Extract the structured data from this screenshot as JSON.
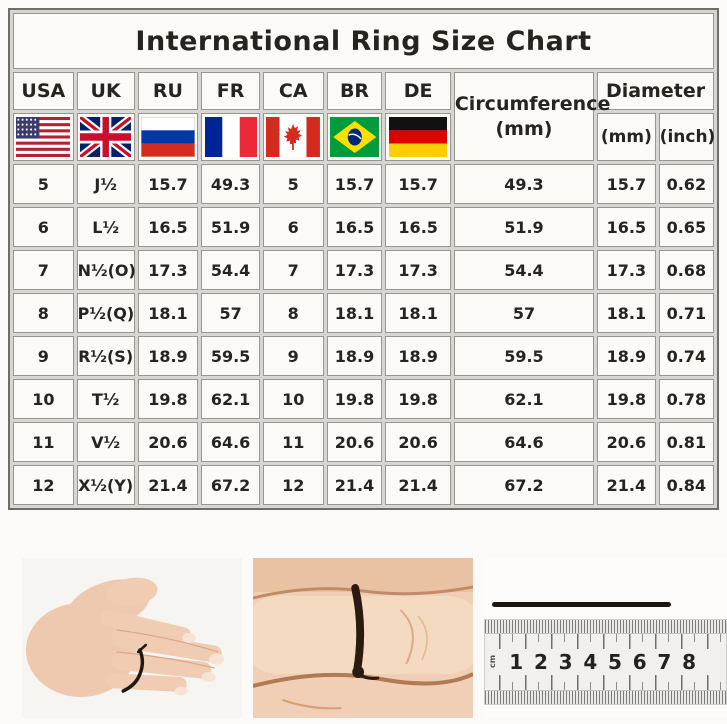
{
  "title": "International Ring Size Chart",
  "table": {
    "columns": [
      {
        "label": "USA",
        "flag": "usa-flag-icon"
      },
      {
        "label": "UK",
        "flag": "uk-flag-icon"
      },
      {
        "label": "RU",
        "flag": "russia-flag-icon"
      },
      {
        "label": "FR",
        "flag": "france-flag-icon"
      },
      {
        "label": "CA",
        "flag": "canada-flag-icon"
      },
      {
        "label": "BR",
        "flag": "brazil-flag-icon"
      },
      {
        "label": "DE",
        "flag": "germany-flag-icon"
      }
    ],
    "circumference_header": "Circumference",
    "circumference_unit": "(mm)",
    "diameter_header": "Diameter",
    "diameter_mm_header": "(mm)",
    "diameter_inch_header": "(inch)",
    "rows": [
      [
        "5",
        "J½",
        "15.7",
        "49.3",
        "5",
        "15.7",
        "15.7",
        "49.3",
        "15.7",
        "0.62"
      ],
      [
        "6",
        "L½",
        "16.5",
        "51.9",
        "6",
        "16.5",
        "16.5",
        "51.9",
        "16.5",
        "0.65"
      ],
      [
        "7",
        "N½(O)",
        "17.3",
        "54.4",
        "7",
        "17.3",
        "17.3",
        "54.4",
        "17.3",
        "0.68"
      ],
      [
        "8",
        "P½(Q)",
        "18.1",
        "57",
        "8",
        "18.1",
        "18.1",
        "57",
        "18.1",
        "0.71"
      ],
      [
        "9",
        "R½(S)",
        "18.9",
        "59.5",
        "9",
        "18.9",
        "18.9",
        "59.5",
        "18.9",
        "0.74"
      ],
      [
        "10",
        "T½",
        "19.8",
        "62.1",
        "10",
        "19.8",
        "19.8",
        "62.1",
        "19.8",
        "0.78"
      ],
      [
        "11",
        "V½",
        "20.6",
        "64.6",
        "11",
        "20.6",
        "20.6",
        "64.6",
        "20.6",
        "0.81"
      ],
      [
        "12",
        "X½(Y)",
        "21.4",
        "67.2",
        "12",
        "21.4",
        "21.4",
        "67.2",
        "21.4",
        "0.84"
      ]
    ]
  },
  "chart_data": {
    "type": "table",
    "title": "International Ring Size Chart",
    "columns": [
      "USA",
      "UK",
      "RU",
      "FR",
      "CA",
      "BR",
      "DE",
      "Circumference (mm)",
      "Diameter (mm)",
      "Diameter (inch)"
    ],
    "rows": [
      [
        "5",
        "J½",
        "15.7",
        "49.3",
        "5",
        "15.7",
        "15.7",
        "49.3",
        "15.7",
        "0.62"
      ],
      [
        "6",
        "L½",
        "16.5",
        "51.9",
        "6",
        "16.5",
        "16.5",
        "51.9",
        "16.5",
        "0.65"
      ],
      [
        "7",
        "N½(O)",
        "17.3",
        "54.4",
        "7",
        "17.3",
        "17.3",
        "54.4",
        "17.3",
        "0.68"
      ],
      [
        "8",
        "P½(Q)",
        "18.1",
        "57",
        "8",
        "18.1",
        "18.1",
        "57",
        "18.1",
        "0.71"
      ],
      [
        "9",
        "R½(S)",
        "18.9",
        "59.5",
        "9",
        "18.9",
        "18.9",
        "59.5",
        "18.9",
        "0.74"
      ],
      [
        "10",
        "T½",
        "19.8",
        "62.1",
        "10",
        "19.8",
        "19.8",
        "62.1",
        "19.8",
        "0.78"
      ],
      [
        "11",
        "V½",
        "20.6",
        "64.6",
        "11",
        "20.6",
        "20.6",
        "64.6",
        "20.6",
        "0.81"
      ],
      [
        "12",
        "X½(Y)",
        "21.4",
        "67.2",
        "12",
        "21.4",
        "21.4",
        "67.2",
        "21.4",
        "0.84"
      ]
    ]
  },
  "photos": {
    "ruler": {
      "unit_label": "cm",
      "numbers": [
        "1",
        "2",
        "3",
        "4",
        "5",
        "6",
        "7",
        "8"
      ]
    }
  },
  "colors": {
    "table_outer_border": "#6e6d68",
    "table_grid_gap": "#d7d6d2",
    "cell_background": "#fbfaf7",
    "text": "#26241f",
    "cord_black": "#1c1410",
    "skin_tone": "#f0ccb3"
  }
}
